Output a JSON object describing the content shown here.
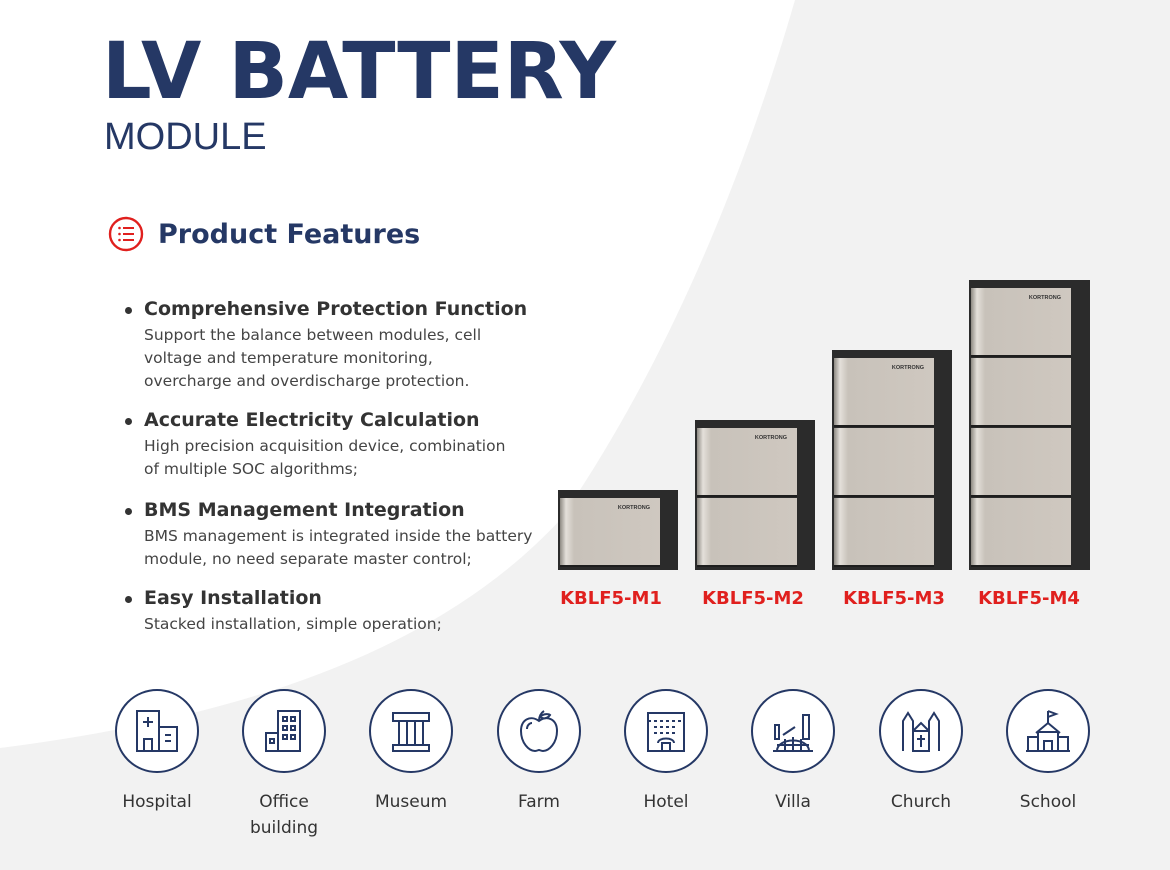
{
  "header": {
    "title": "LV BATTERY",
    "subtitle": "MODULE"
  },
  "features": {
    "heading": "Product Features",
    "icon": "list-icon",
    "accent": "#e0201e",
    "items": [
      {
        "title": "Comprehensive Protection Function",
        "desc": "Support the balance between modules, cell\nvoltage and temperature monitoring,\novercharge and overdischarge protection."
      },
      {
        "title": "Accurate Electricity Calculation",
        "desc": "High precision acquisition device, combination\nof multiple SOC algorithms;"
      },
      {
        "title": "BMS Management Integration",
        "desc": "BMS management is integrated inside the battery\nmodule, no need separate master control;"
      },
      {
        "title": "Easy Installation",
        "desc": "Stacked installation, simple operation;"
      }
    ]
  },
  "products": {
    "brand": "KORTRONG",
    "items": [
      {
        "model": "KBLF5-M1",
        "modules": 1
      },
      {
        "model": "KBLF5-M2",
        "modules": 2
      },
      {
        "model": "KBLF5-M3",
        "modules": 3
      },
      {
        "model": "KBLF5-M4",
        "modules": 4
      }
    ],
    "label_color": "#e0201e"
  },
  "applications": [
    {
      "label": "Hospital",
      "icon": "hospital-icon"
    },
    {
      "label": "Office\nbuilding",
      "icon": "office-building-icon"
    },
    {
      "label": "Museum",
      "icon": "museum-icon"
    },
    {
      "label": "Farm",
      "icon": "apple-icon"
    },
    {
      "label": "Hotel",
      "icon": "hotel-icon"
    },
    {
      "label": "Villa",
      "icon": "villa-icon"
    },
    {
      "label": "Church",
      "icon": "church-icon"
    },
    {
      "label": "School",
      "icon": "school-icon"
    }
  ],
  "colors": {
    "navy": "#253865",
    "red": "#e0201e"
  }
}
